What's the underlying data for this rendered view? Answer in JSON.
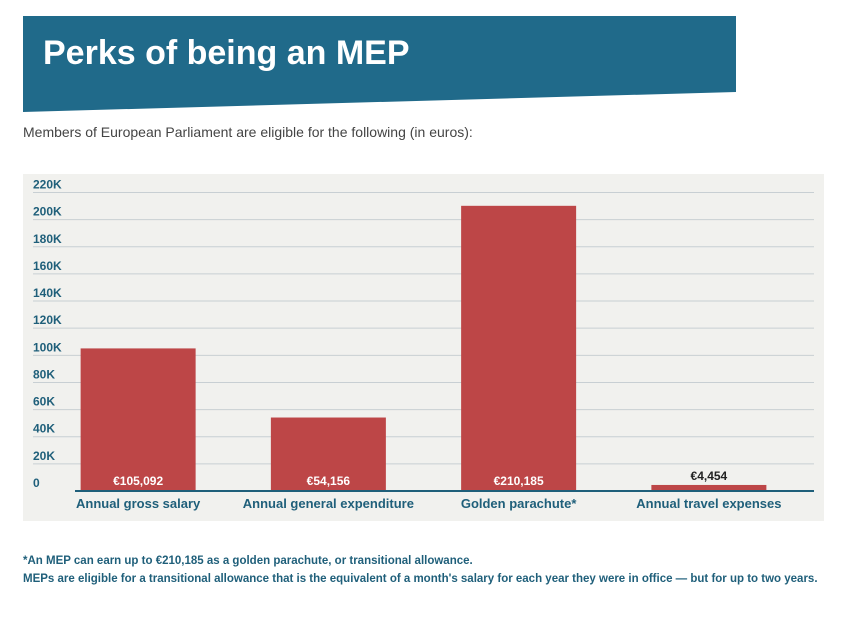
{
  "header": {
    "title": "Perks of being an MEP",
    "subtitle": "Members of European Parliament are eligible for the following (in euros):",
    "banner_color": "#206a8a"
  },
  "chart_data": {
    "type": "bar",
    "categories": [
      "Annual gross salary",
      "Annual general expenditure",
      "Golden parachute*",
      "Annual travel expenses"
    ],
    "values": [
      105092,
      54156,
      210185,
      4454
    ],
    "data_labels": [
      "€105,092",
      "€54,156",
      "€210,185",
      "€4,454"
    ],
    "y_ticks": [
      0,
      20000,
      40000,
      60000,
      80000,
      100000,
      120000,
      140000,
      160000,
      180000,
      200000,
      220000
    ],
    "y_tick_labels": [
      "0",
      "20K",
      "40K",
      "60K",
      "80K",
      "100K",
      "120K",
      "140K",
      "160K",
      "180K",
      "200K",
      "220K"
    ],
    "ylim": [
      0,
      220000
    ],
    "grid": true,
    "bar_color": "#bd4647",
    "axis_color": "#1f5f7a"
  },
  "footnotes": [
    "*An MEP can earn up to €210,185 as a golden parachute, or transitional allowance.",
    "MEPs are eligible for a transitional allowance that is the equivalent of a month's salary for each year they were in office — but for up to two years."
  ]
}
